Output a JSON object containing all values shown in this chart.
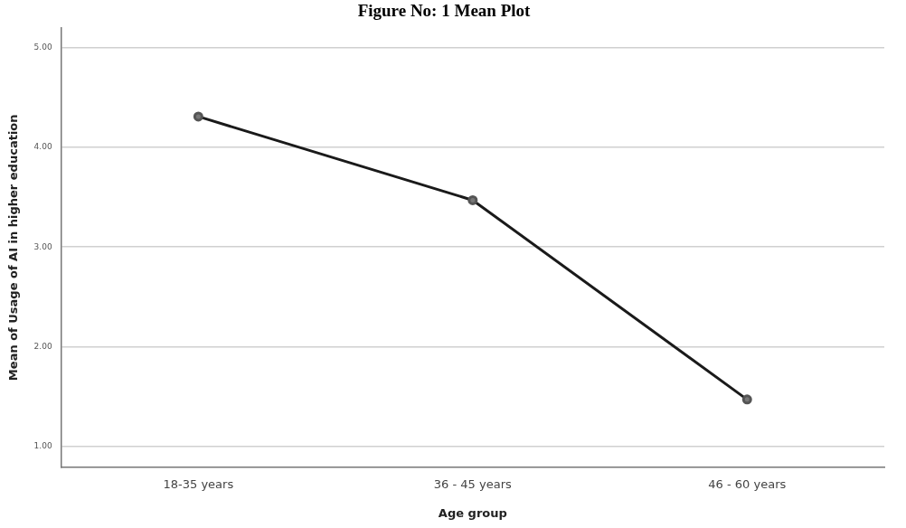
{
  "chart_data": {
    "type": "line",
    "title": "Figure No: 1 Mean Plot",
    "xlabel": "Age group",
    "ylabel": "Mean of Usage of AI in higher education",
    "categories": [
      "18-35 years",
      "36 - 45 years",
      "46 - 60 years"
    ],
    "series": [
      {
        "color": "#1a1a1a",
        "values": [
          4.31,
          3.47,
          1.47
        ]
      }
    ],
    "ylim": [
      0.79,
      5.2
    ],
    "yticks": [
      {
        "value": 1,
        "label": "1.00"
      },
      {
        "value": 2,
        "label": "2.00"
      },
      {
        "value": 3,
        "label": "3.00"
      },
      {
        "value": 4,
        "label": "4.00"
      },
      {
        "value": 5,
        "label": "5.00"
      }
    ],
    "grid": "y",
    "legend": false,
    "marker": "circle",
    "line_style": "solid"
  }
}
